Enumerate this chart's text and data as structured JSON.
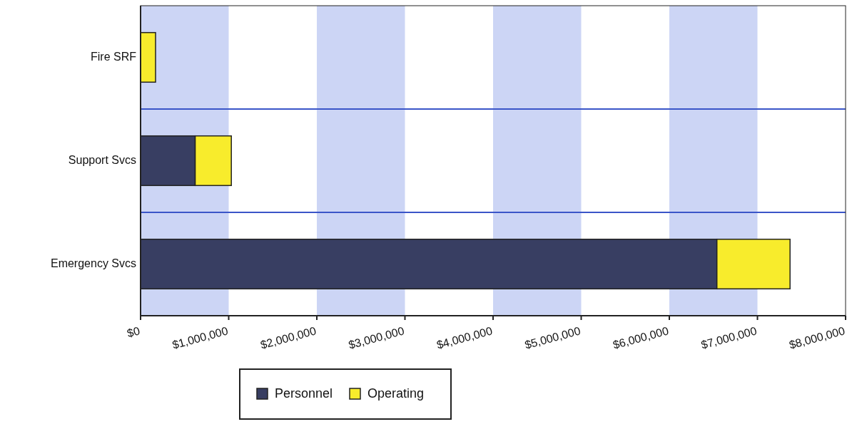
{
  "chart_data": {
    "type": "bar",
    "orientation": "horizontal",
    "stacked": true,
    "categories": [
      "Fire SRF",
      "Support Svcs",
      "Emergency Svcs"
    ],
    "series": [
      {
        "name": "Personnel",
        "color": "#383e62",
        "values": [
          0,
          620000,
          6540000
        ]
      },
      {
        "name": "Operating",
        "color": "#f8ec2c",
        "values": [
          170000,
          410000,
          830000
        ]
      }
    ],
    "xlim": [
      0,
      8000000
    ],
    "xticks": [
      {
        "value": 0,
        "label": "$0"
      },
      {
        "value": 1000000,
        "label": "$1,000,000"
      },
      {
        "value": 2000000,
        "label": "$2,000,000"
      },
      {
        "value": 3000000,
        "label": "$3,000,000"
      },
      {
        "value": 4000000,
        "label": "$4,000,000"
      },
      {
        "value": 5000000,
        "label": "$5,000,000"
      },
      {
        "value": 6000000,
        "label": "$6,000,000"
      },
      {
        "value": 7000000,
        "label": "$7,000,000"
      },
      {
        "value": 8000000,
        "label": "$8,000,000"
      }
    ],
    "bands": [
      {
        "axis": "x",
        "from": 0,
        "to": 1000000,
        "color": "#ccd5f5"
      },
      {
        "axis": "x",
        "from": 2000000,
        "to": 3000000,
        "color": "#ccd5f5"
      },
      {
        "axis": "x",
        "from": 4000000,
        "to": 5000000,
        "color": "#ccd5f5"
      },
      {
        "axis": "x",
        "from": 6000000,
        "to": 7000000,
        "color": "#ccd5f5"
      }
    ],
    "legend": "bottom"
  }
}
